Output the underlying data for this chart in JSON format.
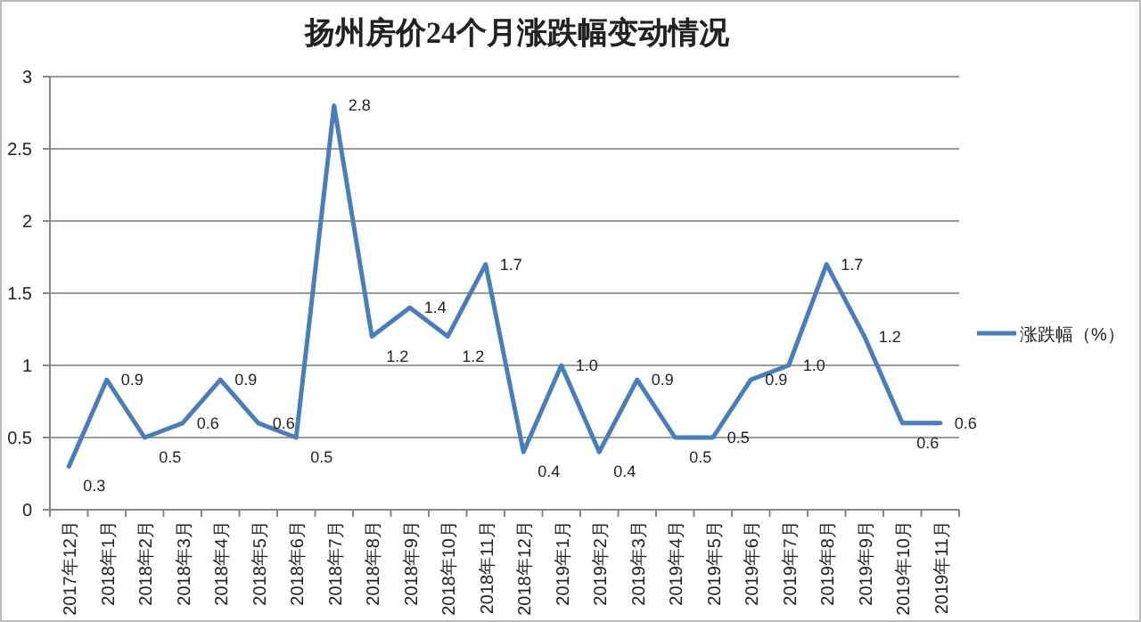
{
  "chart_data": {
    "type": "line",
    "title": "扬州房价24个月涨跌幅变动情况",
    "categories": [
      "2017年12月",
      "2018年1月",
      "2018年2月",
      "2018年3月",
      "2018年4月",
      "2018年5月",
      "2018年6月",
      "2018年7月",
      "2018年8月",
      "2018年9月",
      "2018年10月",
      "2018年11月",
      "2018年12月",
      "2019年1月",
      "2019年2月",
      "2019年3月",
      "2019年4月",
      "2019年5月",
      "2019年6月",
      "2019年7月",
      "2019年8月",
      "2019年9月",
      "2019年10月",
      "2019年11月"
    ],
    "series": [
      {
        "name": "涨跌幅（%）",
        "color": "#4a7ebb",
        "values": [
          0.3,
          0.9,
          0.5,
          0.6,
          0.9,
          0.6,
          0.5,
          2.8,
          1.2,
          1.4,
          1.2,
          1.7,
          0.4,
          1.0,
          0.4,
          0.9,
          0.5,
          0.5,
          0.9,
          1.0,
          1.7,
          1.2,
          0.6,
          0.6
        ],
        "value_labels": [
          "0.3",
          "0.9",
          "0.5",
          "0.6",
          "0.9",
          "0.6",
          "0.5",
          "2.8",
          "1.2",
          "1.4",
          "1.2",
          "1.7",
          "0.4",
          "1.0",
          "0.4",
          "0.9",
          "0.5",
          "0.5",
          "0.9",
          "1.0",
          "1.7",
          "1.2",
          "0.6",
          "0.6"
        ]
      }
    ],
    "ylim": [
      0,
      3
    ],
    "yticks": [
      0,
      0.5,
      1,
      1.5,
      2,
      2.5,
      3
    ],
    "grid": "y",
    "legend": "right",
    "marker": "none",
    "line_style": "solid"
  }
}
